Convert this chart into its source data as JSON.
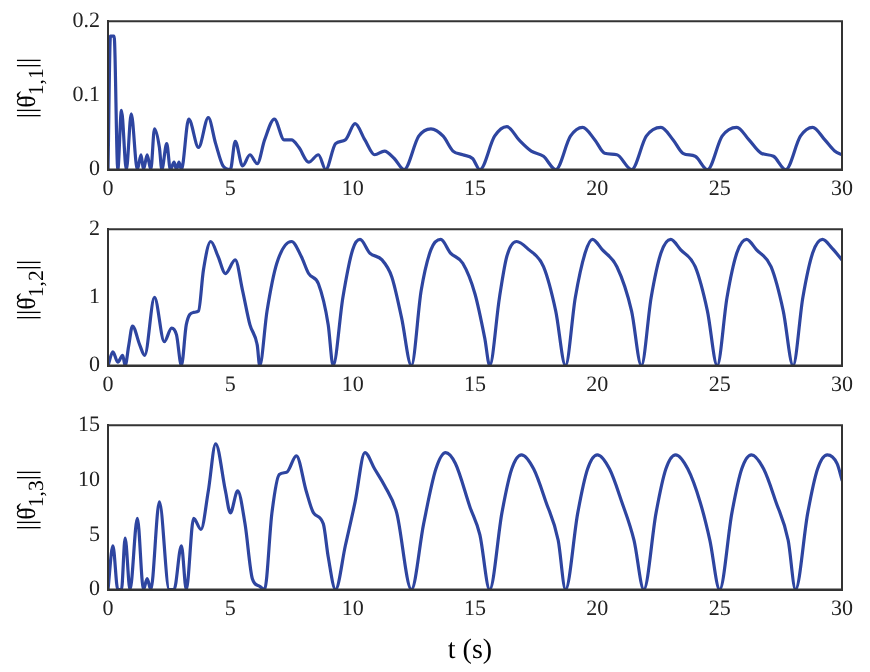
{
  "chart_data": [
    {
      "type": "line",
      "ylabel": "||θ̂$_{1,1}$||",
      "xlim": [
        0,
        30
      ],
      "xticks": [
        0,
        5,
        10,
        15,
        20,
        25,
        30
      ],
      "ylim": [
        0,
        0.2
      ],
      "yticks": [
        0,
        0.1,
        0.2
      ],
      "grid": false,
      "legend": false,
      "marker": "none",
      "line_style": "solid",
      "series": [
        {
          "color": "#2e45a0",
          "x": [
            0,
            0.1,
            0.25,
            0.4,
            0.55,
            0.75,
            0.95,
            1.2,
            1.35,
            1.45,
            1.6,
            1.75,
            1.9,
            2.1,
            2.2,
            2.4,
            2.55,
            2.7,
            2.8,
            2.9,
            3.0,
            3.3,
            3.7,
            4.1,
            4.4,
            4.7,
            5.0,
            5.2,
            5.5,
            5.8,
            6.1,
            6.4,
            6.8,
            7.2,
            7.5,
            7.8,
            8.2,
            8.6,
            8.9,
            9.3,
            9.7,
            10.1,
            10.5,
            10.9,
            11.3,
            11.7,
            12.1,
            12.7,
            13.2,
            13.7,
            14.1,
            14.5,
            14.9,
            15.2,
            15.8,
            16.3,
            16.8,
            17.3,
            17.8,
            18.3,
            18.9,
            19.4,
            19.9,
            20.3,
            20.8,
            21.4,
            22.0,
            22.6,
            23.1,
            23.5,
            24.0,
            24.5,
            25.1,
            25.7,
            26.2,
            26.7,
            27.2,
            27.7,
            28.3,
            28.8,
            29.3,
            29.7,
            30
          ],
          "values": [
            0,
            0.18,
            0.18,
            0,
            0.08,
            0,
            0.075,
            0,
            0.02,
            0,
            0.02,
            0,
            0.055,
            0.03,
            0,
            0.035,
            0,
            0.01,
            0,
            0.01,
            0,
            0.068,
            0.03,
            0.07,
            0.035,
            0.005,
            0,
            0.038,
            0.005,
            0.02,
            0.008,
            0.04,
            0.068,
            0.04,
            0.04,
            0.03,
            0.01,
            0.02,
            0,
            0.035,
            0.04,
            0.062,
            0.04,
            0.02,
            0.025,
            0.015,
            0,
            0.045,
            0.055,
            0.045,
            0.025,
            0.02,
            0.015,
            0,
            0.045,
            0.058,
            0.04,
            0.025,
            0.018,
            0,
            0.045,
            0.057,
            0.04,
            0.022,
            0.02,
            0,
            0.045,
            0.057,
            0.04,
            0.022,
            0.018,
            0,
            0.045,
            0.057,
            0.04,
            0.022,
            0.018,
            0,
            0.045,
            0.057,
            0.04,
            0.025,
            0.02
          ]
        }
      ]
    },
    {
      "type": "line",
      "ylabel": "||θ̂$_{1,2}$||",
      "xlim": [
        0,
        30
      ],
      "xticks": [
        0,
        5,
        10,
        15,
        20,
        25,
        30
      ],
      "ylim": [
        0,
        2
      ],
      "yticks": [
        0,
        1,
        2
      ],
      "grid": false,
      "legend": false,
      "marker": "none",
      "line_style": "solid",
      "series": [
        {
          "color": "#2e45a0",
          "x": [
            0,
            0.2,
            0.4,
            0.6,
            0.7,
            0.85,
            1.0,
            1.3,
            1.5,
            1.9,
            2.3,
            2.6,
            2.8,
            3.0,
            3.2,
            3.5,
            3.7,
            3.9,
            4.2,
            4.5,
            4.8,
            5.2,
            5.5,
            5.8,
            6.1,
            6.2,
            6.5,
            6.9,
            7.5,
            7.9,
            8.2,
            8.6,
            9.0,
            9.2,
            9.6,
            10.0,
            10.3,
            10.7,
            11.2,
            11.6,
            12.0,
            12.4,
            12.8,
            13.2,
            13.6,
            14.0,
            14.5,
            15.0,
            15.4,
            15.6,
            16.0,
            16.3,
            16.7,
            17.2,
            17.8,
            18.3,
            18.7,
            19.1,
            19.5,
            19.8,
            20.2,
            20.8,
            21.4,
            21.8,
            22.2,
            22.6,
            23.0,
            23.4,
            24.0,
            24.5,
            24.9,
            25.3,
            25.7,
            26.1,
            26.5,
            27.1,
            27.6,
            28.0,
            28.4,
            28.8,
            29.2,
            29.6,
            30
          ],
          "values": [
            0,
            0.2,
            0.05,
            0.15,
            0,
            0.3,
            0.58,
            0.3,
            0.15,
            1.0,
            0.35,
            0.55,
            0.45,
            0,
            0.6,
            0.78,
            0.8,
            1.4,
            1.82,
            1.6,
            1.35,
            1.55,
            1.1,
            0.6,
            0.3,
            0,
            0.8,
            1.5,
            1.82,
            1.6,
            1.35,
            1.2,
            0.6,
            0,
            1.0,
            1.7,
            1.85,
            1.65,
            1.55,
            1.3,
            0.7,
            0,
            1.1,
            1.7,
            1.85,
            1.65,
            1.5,
            1.05,
            0.4,
            0,
            1.0,
            1.6,
            1.82,
            1.7,
            1.45,
            0.8,
            0,
            1.0,
            1.65,
            1.85,
            1.7,
            1.45,
            0.8,
            0,
            1.0,
            1.65,
            1.85,
            1.7,
            1.45,
            0.8,
            0,
            1.0,
            1.65,
            1.85,
            1.7,
            1.45,
            0.8,
            0,
            1.0,
            1.65,
            1.85,
            1.72,
            1.55
          ]
        }
      ]
    },
    {
      "type": "line",
      "ylabel": "||θ̂$_{1,3}$||",
      "xlabel": "t (s)",
      "xlim": [
        0,
        30
      ],
      "xticks": [
        0,
        5,
        10,
        15,
        20,
        25,
        30
      ],
      "ylim": [
        0,
        15
      ],
      "yticks": [
        0,
        5,
        10,
        15
      ],
      "grid": false,
      "legend": false,
      "marker": "none",
      "line_style": "solid",
      "series": [
        {
          "color": "#2e45a0",
          "x": [
            0,
            0.2,
            0.4,
            0.55,
            0.7,
            0.9,
            1.2,
            1.45,
            1.6,
            1.75,
            2.1,
            2.5,
            2.7,
            3.0,
            3.2,
            3.5,
            3.8,
            4.1,
            4.4,
            4.8,
            5.0,
            5.3,
            5.6,
            5.9,
            6.2,
            6.4,
            6.7,
            7.0,
            7.3,
            7.7,
            8.1,
            8.4,
            8.8,
            9.0,
            9.3,
            9.7,
            10.1,
            10.5,
            10.9,
            11.3,
            11.8,
            12.4,
            12.9,
            13.4,
            13.8,
            14.2,
            14.8,
            15.2,
            15.6,
            16.1,
            16.5,
            16.9,
            17.4,
            17.9,
            18.4,
            18.7,
            19.2,
            19.6,
            20.0,
            20.5,
            21.0,
            21.5,
            21.9,
            22.4,
            22.8,
            23.2,
            23.7,
            24.2,
            24.6,
            25.0,
            25.5,
            25.9,
            26.3,
            26.8,
            27.3,
            27.8,
            28.1,
            28.6,
            29.0,
            29.4,
            29.8,
            30
          ],
          "values": [
            0,
            4,
            0,
            0,
            4.7,
            0,
            6.5,
            0,
            1,
            0,
            8,
            0,
            0,
            4,
            0,
            6.5,
            5.5,
            9,
            13.3,
            9,
            7,
            9,
            6,
            1,
            0.3,
            0,
            7,
            10.5,
            10.7,
            12.2,
            9,
            7,
            6,
            3,
            0,
            4,
            8,
            12.5,
            11,
            9.5,
            7,
            0,
            6,
            11,
            12.5,
            11.5,
            7.5,
            5,
            0,
            7,
            11,
            12.3,
            11,
            8,
            4.5,
            0,
            7,
            11,
            12.3,
            11,
            8,
            4.5,
            0,
            7,
            11,
            12.3,
            11,
            8,
            4.5,
            0,
            7,
            11,
            12.3,
            11,
            8,
            4.5,
            0,
            7,
            11,
            12.3,
            11.5,
            10
          ]
        }
      ]
    }
  ]
}
